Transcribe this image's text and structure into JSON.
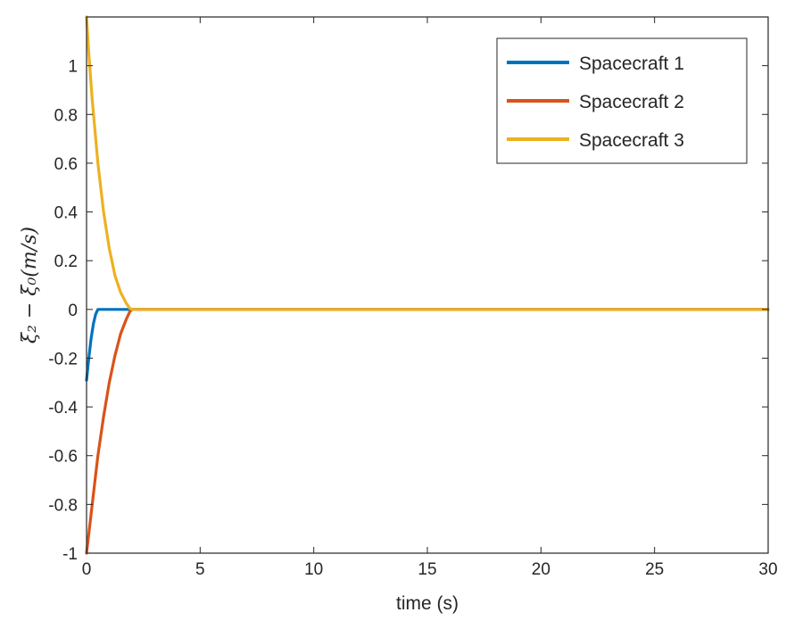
{
  "chart_data": {
    "type": "line",
    "xlabel": "time (s)",
    "ylabel": "ξ₂ − ξ₀(m/s)",
    "xlim": [
      0,
      30
    ],
    "ylim": [
      -1,
      1.2
    ],
    "xticks": [
      0,
      5,
      10,
      15,
      20,
      25,
      30
    ],
    "yticks": [
      -1,
      -0.8,
      -0.6,
      -0.4,
      -0.2,
      0,
      0.2,
      0.4,
      0.6,
      0.8,
      1
    ],
    "xtick_labels": [
      "0",
      "5",
      "10",
      "15",
      "20",
      "25",
      "30"
    ],
    "ytick_labels": [
      "-1",
      "-0.8",
      "-0.6",
      "-0.4",
      "-0.2",
      "0",
      "0.2",
      "0.4",
      "0.6",
      "0.8",
      "1"
    ],
    "grid": false,
    "legend_position": "top-right",
    "series": [
      {
        "name": "Spacecraft 1",
        "color": "#0072BD",
        "x": [
          0,
          0.1,
          0.2,
          0.3,
          0.4,
          0.5,
          0.6,
          1.0,
          2.0,
          5,
          10,
          15,
          20,
          25,
          30
        ],
        "y": [
          -0.29,
          -0.2,
          -0.12,
          -0.06,
          -0.02,
          0,
          0,
          0,
          0,
          0,
          0,
          0,
          0,
          0,
          0
        ]
      },
      {
        "name": "Spacecraft 2",
        "color": "#D95319",
        "x": [
          0,
          0.1,
          0.25,
          0.5,
          0.75,
          1.0,
          1.25,
          1.5,
          1.75,
          1.9,
          2.0,
          3,
          5,
          10,
          15,
          20,
          25,
          30
        ],
        "y": [
          -1.0,
          -0.92,
          -0.8,
          -0.6,
          -0.44,
          -0.3,
          -0.19,
          -0.1,
          -0.04,
          -0.01,
          0,
          0,
          0,
          0,
          0,
          0,
          0,
          0
        ],
        "marker_last_point": false
      },
      {
        "name": "Spacecraft 3",
        "color": "#EDB120",
        "x": [
          0,
          0.1,
          0.25,
          0.5,
          0.75,
          1.0,
          1.25,
          1.5,
          1.75,
          1.9,
          2.0,
          3,
          5,
          10,
          15,
          20,
          25,
          30
        ],
        "y": [
          1.2,
          1.05,
          0.86,
          0.6,
          0.4,
          0.25,
          0.14,
          0.07,
          0.025,
          0.005,
          0,
          0,
          0,
          0,
          0,
          0,
          0,
          0
        ]
      }
    ]
  }
}
